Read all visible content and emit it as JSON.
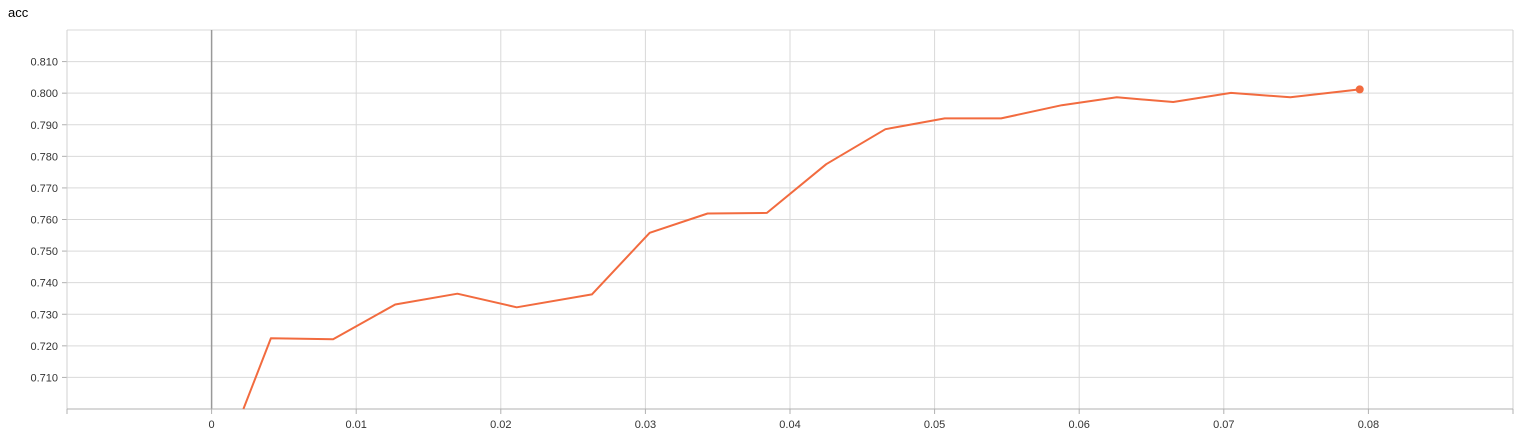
{
  "chart_data": {
    "type": "line",
    "title": "acc",
    "xlabel": "",
    "ylabel": "",
    "xlim": [
      -0.01,
      0.09
    ],
    "ylim": [
      0.7,
      0.82
    ],
    "x_ticks": [
      0,
      0.01,
      0.02,
      0.03,
      0.04,
      0.05,
      0.06,
      0.07,
      0.08
    ],
    "x_tick_labels": [
      "0",
      "0.01",
      "0.02",
      "0.03",
      "0.04",
      "0.05",
      "0.06",
      "0.07",
      "0.08"
    ],
    "y_ticks": [
      0.71,
      0.72,
      0.73,
      0.74,
      0.75,
      0.76,
      0.77,
      0.78,
      0.79,
      0.8,
      0.81
    ],
    "y_tick_labels": [
      "0.710",
      "0.720",
      "0.730",
      "0.740",
      "0.750",
      "0.760",
      "0.770",
      "0.780",
      "0.790",
      "0.800",
      "0.810"
    ],
    "grid": true,
    "series": [
      {
        "color": "#f26b3f",
        "points": [
          [
            0.0022,
            0.7
          ],
          [
            0.0041,
            0.7224
          ],
          [
            0.0084,
            0.7221
          ],
          [
            0.0127,
            0.7331
          ],
          [
            0.017,
            0.7365
          ],
          [
            0.0211,
            0.7322
          ],
          [
            0.0263,
            0.7363
          ],
          [
            0.0303,
            0.7558
          ],
          [
            0.0343,
            0.7619
          ],
          [
            0.0384,
            0.7621
          ],
          [
            0.0425,
            0.7775
          ],
          [
            0.0466,
            0.7886
          ],
          [
            0.0507,
            0.792
          ],
          [
            0.0546,
            0.792
          ],
          [
            0.0588,
            0.7962
          ],
          [
            0.0626,
            0.7987
          ],
          [
            0.0665,
            0.7972
          ],
          [
            0.0705,
            0.8001
          ],
          [
            0.0746,
            0.7987
          ],
          [
            0.0794,
            0.8012
          ]
        ]
      }
    ]
  }
}
